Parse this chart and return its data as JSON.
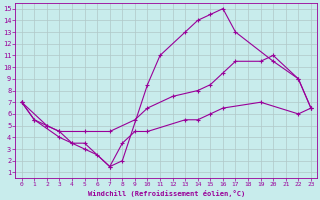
{
  "xlabel": "Windchill (Refroidissement éolien,°C)",
  "xlim": [
    -0.5,
    23.5
  ],
  "ylim": [
    0.5,
    15.5
  ],
  "xticks": [
    0,
    1,
    2,
    3,
    4,
    5,
    6,
    7,
    8,
    9,
    10,
    11,
    12,
    13,
    14,
    15,
    16,
    17,
    18,
    19,
    20,
    21,
    22,
    23
  ],
  "yticks": [
    1,
    2,
    3,
    4,
    5,
    6,
    7,
    8,
    9,
    10,
    11,
    12,
    13,
    14,
    15
  ],
  "background_color": "#c8ecec",
  "line_color": "#990099",
  "grid_color": "#b0c8c8",
  "line1_x": [
    0,
    1,
    3,
    4,
    5,
    7,
    8,
    10,
    11,
    13,
    14,
    15,
    16,
    17,
    20,
    22,
    23
  ],
  "line1_y": [
    7.0,
    5.5,
    4.0,
    3.5,
    3.5,
    1.5,
    2.0,
    8.5,
    11.0,
    13.0,
    14.0,
    14.5,
    15.0,
    13.0,
    10.5,
    9.0,
    6.5
  ],
  "line2_x": [
    0,
    1,
    2,
    3,
    5,
    7,
    9,
    10,
    12,
    14,
    15,
    16,
    17,
    19,
    20,
    22,
    23
  ],
  "line2_y": [
    7.0,
    5.5,
    5.0,
    4.5,
    4.5,
    4.5,
    5.5,
    6.5,
    7.5,
    8.0,
    8.5,
    9.5,
    10.5,
    10.5,
    11.0,
    9.0,
    6.5
  ],
  "line3_x": [
    0,
    2,
    3,
    4,
    5,
    6,
    7,
    8,
    9,
    10,
    13,
    14,
    15,
    16,
    19,
    22,
    23
  ],
  "line3_y": [
    7.0,
    5.0,
    4.5,
    3.5,
    3.0,
    2.5,
    1.5,
    3.5,
    4.5,
    4.5,
    5.5,
    5.5,
    6.0,
    6.5,
    7.0,
    6.0,
    6.5
  ]
}
